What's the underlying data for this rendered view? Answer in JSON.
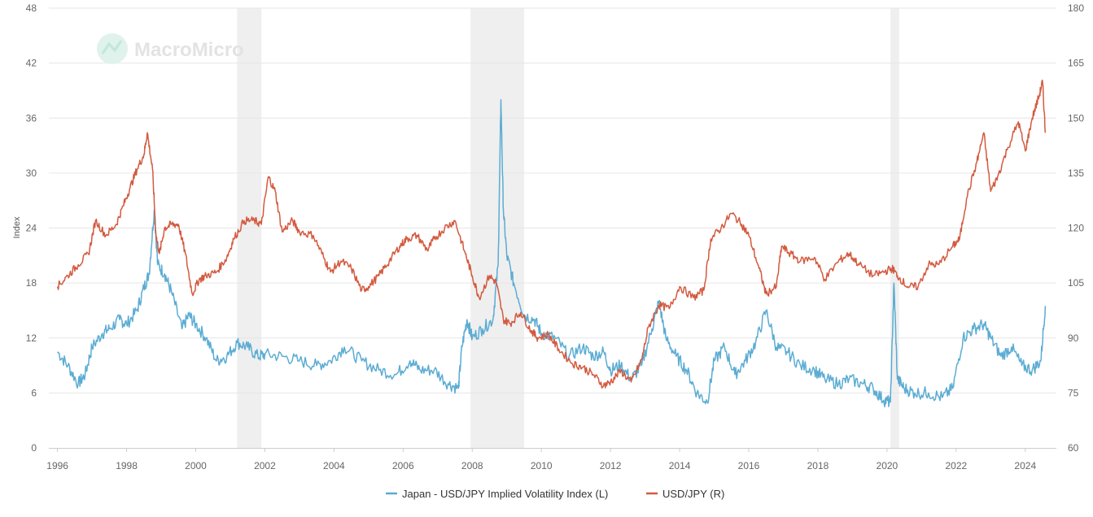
{
  "chart_data": {
    "type": "line",
    "watermark": "MacroMicro",
    "ylabel_left": "Index",
    "xlim": [
      1995.75,
      2024.9
    ],
    "ylim_left": [
      0,
      48
    ],
    "ylim_right": [
      60,
      180
    ],
    "left_ticks": [
      "0",
      "6",
      "12",
      "18",
      "24",
      "30",
      "36",
      "42",
      "48"
    ],
    "right_ticks": [
      "60",
      "75",
      "90",
      "105",
      "120",
      "135",
      "150",
      "165",
      "180"
    ],
    "x_ticks": [
      "1996",
      "1998",
      "2000",
      "2002",
      "2004",
      "2006",
      "2008",
      "2010",
      "2012",
      "2014",
      "2016",
      "2018",
      "2020",
      "2022",
      "2024"
    ],
    "grid": true,
    "legend_position": "bottom-center",
    "shaded_periods": [
      {
        "start": 2001.2,
        "end": 2001.9
      },
      {
        "start": 2007.95,
        "end": 2009.5
      },
      {
        "start": 2020.1,
        "end": 2020.35
      }
    ],
    "series": [
      {
        "name": "Japan - USD/JPY Implied Volatility Index (L)",
        "axis": "left",
        "color": "#5bacd3",
        "x": [
          1996.0,
          1996.3,
          1996.6,
          1996.8,
          1997.0,
          1997.3,
          1997.5,
          1997.8,
          1998.0,
          1998.3,
          1998.5,
          1998.65,
          1998.8,
          1998.9,
          1999.1,
          1999.3,
          1999.6,
          1999.8,
          2000.0,
          2000.3,
          2000.6,
          2000.9,
          2001.2,
          2001.5,
          2001.8,
          2002.0,
          2002.5,
          2003.0,
          2003.5,
          2003.9,
          2004.3,
          2004.8,
          2005.3,
          2005.8,
          2006.2,
          2006.5,
          2006.9,
          2007.3,
          2007.6,
          2007.7,
          2007.85,
          2008.0,
          2008.3,
          2008.6,
          2008.75,
          2008.83,
          2008.9,
          2009.0,
          2009.2,
          2009.5,
          2009.8,
          2010.0,
          2010.4,
          2010.8,
          2011.2,
          2011.5,
          2011.8,
          2012.0,
          2012.3,
          2012.6,
          2012.9,
          2013.2,
          2013.4,
          2013.6,
          2013.9,
          2014.2,
          2014.5,
          2014.8,
          2015.0,
          2015.3,
          2015.6,
          2015.9,
          2016.2,
          2016.5,
          2016.8,
          2017.1,
          2017.5,
          2017.9,
          2018.2,
          2018.6,
          2018.9,
          2019.3,
          2019.6,
          2019.9,
          2020.1,
          2020.2,
          2020.3,
          2020.5,
          2020.8,
          2021.2,
          2021.6,
          2021.9,
          2022.2,
          2022.5,
          2022.8,
          2023.0,
          2023.3,
          2023.6,
          2023.9,
          2024.2,
          2024.45,
          2024.58
        ],
        "values": [
          10.5,
          9,
          7,
          8,
          11,
          12.5,
          13,
          14,
          13.5,
          15,
          17.5,
          19,
          26,
          20,
          19,
          17,
          13,
          14.5,
          13.5,
          12,
          9.5,
          10,
          11.5,
          11,
          10,
          10.2,
          10,
          9.5,
          9,
          9.5,
          11,
          9.5,
          8.5,
          8,
          9.5,
          8.5,
          8.5,
          7,
          6.5,
          11,
          14,
          12,
          13,
          14,
          20,
          38,
          26,
          21,
          18,
          14.5,
          14,
          12.5,
          12,
          10,
          11,
          10,
          10.5,
          8.5,
          9,
          7.5,
          9,
          13,
          16,
          12,
          10,
          8.5,
          6,
          5,
          9.5,
          11,
          8,
          9.5,
          11.5,
          15,
          11,
          10.5,
          9,
          8.5,
          7.5,
          7,
          7.5,
          7,
          6.5,
          5.2,
          5,
          18,
          7.5,
          6.5,
          6,
          6,
          5.5,
          6.5,
          12,
          13,
          13.5,
          12,
          10,
          11,
          9,
          8.5,
          9.5,
          15.5
        ]
      },
      {
        "name": "USD/JPY (R)",
        "axis": "right",
        "color": "#d35a3f",
        "x": [
          1996.0,
          1996.3,
          1996.6,
          1996.9,
          1997.1,
          1997.4,
          1997.7,
          1997.9,
          1998.1,
          1998.3,
          1998.5,
          1998.6,
          1998.75,
          1998.85,
          1998.95,
          1999.1,
          1999.3,
          1999.5,
          1999.7,
          1999.9,
          2000.1,
          2000.3,
          2000.6,
          2000.9,
          2001.1,
          2001.4,
          2001.7,
          2001.9,
          2002.1,
          2002.3,
          2002.5,
          2002.8,
          2003.0,
          2003.4,
          2003.7,
          2003.9,
          2004.2,
          2004.5,
          2004.8,
          2005.0,
          2005.3,
          2005.6,
          2005.9,
          2006.1,
          2006.4,
          2006.7,
          2006.9,
          2007.2,
          2007.5,
          2007.8,
          2008.0,
          2008.2,
          2008.5,
          2008.7,
          2008.9,
          2009.1,
          2009.4,
          2009.7,
          2009.9,
          2010.2,
          2010.5,
          2010.9,
          2011.2,
          2011.5,
          2011.8,
          2012.0,
          2012.3,
          2012.6,
          2012.9,
          2013.1,
          2013.4,
          2013.7,
          2014.0,
          2014.4,
          2014.7,
          2014.9,
          2015.2,
          2015.5,
          2015.8,
          2016.0,
          2016.3,
          2016.5,
          2016.8,
          2016.95,
          2017.2,
          2017.5,
          2017.9,
          2018.2,
          2018.6,
          2018.9,
          2019.2,
          2019.6,
          2019.9,
          2020.15,
          2020.3,
          2020.6,
          2020.9,
          2021.2,
          2021.5,
          2021.9,
          2022.1,
          2022.3,
          2022.6,
          2022.8,
          2023.0,
          2023.2,
          2023.5,
          2023.8,
          2024.0,
          2024.2,
          2024.4,
          2024.5,
          2024.58
        ],
        "values": [
          104,
          107,
          110,
          113,
          122,
          118,
          121,
          126,
          131,
          136,
          140,
          146,
          136,
          118,
          113,
          120,
          121,
          121,
          113,
          102,
          106,
          107,
          108,
          112,
          117,
          122,
          122,
          121,
          134,
          130,
          119,
          122,
          119,
          118,
          112,
          108,
          111,
          109,
          103,
          104,
          107,
          111,
          115,
          117,
          118,
          114,
          117,
          120,
          122,
          113,
          107,
          101,
          107,
          105,
          95,
          94,
          97,
          92,
          90,
          91,
          87,
          83,
          82,
          80,
          77,
          78,
          81,
          78,
          84,
          93,
          99,
          98,
          104,
          101,
          103,
          117,
          120,
          124,
          121,
          118,
          109,
          102,
          104,
          115,
          113,
          111,
          112,
          106,
          111,
          113,
          110,
          107,
          108,
          109,
          107,
          104,
          104,
          110,
          110,
          115,
          117,
          128,
          138,
          146,
          130,
          134,
          142,
          149,
          141,
          150,
          156,
          160,
          146
        ]
      }
    ]
  }
}
